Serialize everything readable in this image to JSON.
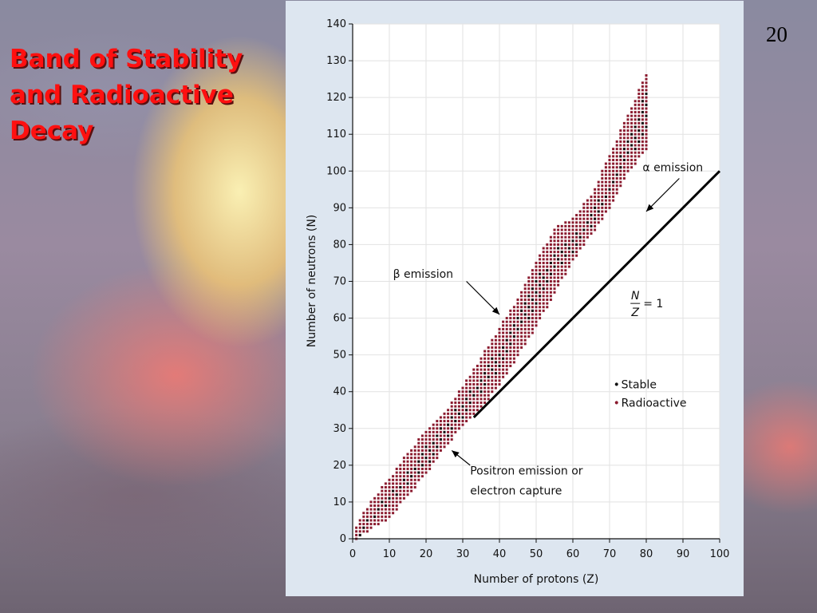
{
  "slide": {
    "title_lines": [
      "Band of Stability",
      "and Radioactive",
      "Decay"
    ],
    "number": "20"
  },
  "colors": {
    "title": "#ff1010",
    "stable": "#111111",
    "radioactive": "#8a1a2e",
    "panel": "#dde6f0"
  },
  "chart_data": {
    "type": "scatter",
    "xlabel": "Number of protons (Z)",
    "ylabel": "Number of neutrons (N)",
    "xlim": [
      0,
      100
    ],
    "ylim": [
      0,
      140
    ],
    "x_ticks": [
      0,
      10,
      20,
      30,
      40,
      50,
      60,
      70,
      80,
      90,
      100
    ],
    "y_ticks": [
      0,
      10,
      20,
      30,
      40,
      50,
      60,
      70,
      80,
      90,
      100,
      110,
      120,
      130,
      140
    ],
    "grid": true,
    "legend_position": "bottom-right",
    "legend": [
      {
        "label": "Stable",
        "marker": "•",
        "color": "#111111"
      },
      {
        "label": "Radioactive",
        "marker": "•",
        "color": "#8a1a2e"
      }
    ],
    "series": [
      {
        "name": "Radioactive",
        "color": "#8a1a2e",
        "band_upper": [
          [
            1,
            3
          ],
          [
            5,
            10
          ],
          [
            10,
            16
          ],
          [
            15,
            23
          ],
          [
            20,
            29
          ],
          [
            25,
            34
          ],
          [
            30,
            41
          ],
          [
            35,
            49
          ],
          [
            40,
            57
          ],
          [
            45,
            65
          ],
          [
            50,
            75
          ],
          [
            55,
            84
          ],
          [
            60,
            87
          ],
          [
            65,
            93
          ],
          [
            70,
            104
          ],
          [
            75,
            115
          ],
          [
            80,
            126
          ]
        ],
        "band_lower": [
          [
            1,
            0
          ],
          [
            5,
            3
          ],
          [
            10,
            6
          ],
          [
            15,
            12
          ],
          [
            20,
            18
          ],
          [
            25,
            25
          ],
          [
            30,
            31
          ],
          [
            35,
            36
          ],
          [
            40,
            42
          ],
          [
            45,
            50
          ],
          [
            50,
            58
          ],
          [
            55,
            67
          ],
          [
            60,
            76
          ],
          [
            65,
            83
          ],
          [
            70,
            90
          ],
          [
            75,
            100
          ],
          [
            80,
            106
          ]
        ]
      },
      {
        "name": "Stable",
        "color": "#111111",
        "band_upper": [
          [
            1,
            1
          ],
          [
            5,
            6
          ],
          [
            10,
            12
          ],
          [
            15,
            18
          ],
          [
            20,
            25
          ],
          [
            25,
            31
          ],
          [
            30,
            37
          ],
          [
            35,
            44
          ],
          [
            40,
            52
          ],
          [
            45,
            60
          ],
          [
            50,
            70
          ],
          [
            55,
            78
          ],
          [
            60,
            82
          ],
          [
            65,
            88
          ],
          [
            70,
            97
          ],
          [
            75,
            108
          ],
          [
            80,
            122
          ]
        ],
        "band_lower": [
          [
            1,
            0
          ],
          [
            5,
            5
          ],
          [
            10,
            10
          ],
          [
            15,
            15
          ],
          [
            20,
            20
          ],
          [
            25,
            27
          ],
          [
            30,
            33
          ],
          [
            35,
            40
          ],
          [
            40,
            46
          ],
          [
            45,
            55
          ],
          [
            50,
            64
          ],
          [
            55,
            73
          ],
          [
            60,
            78
          ],
          [
            65,
            85
          ],
          [
            70,
            94
          ],
          [
            75,
            104
          ],
          [
            80,
            110
          ]
        ]
      }
    ],
    "reference_line": {
      "from": [
        33,
        33
      ],
      "to": [
        100,
        100
      ]
    },
    "reference_line_label": {
      "numerator": "N",
      "denominator": "Z",
      "suffix": "= 1",
      "at": [
        77,
        64
      ]
    },
    "annotations": [
      {
        "text": "α emission",
        "text_at": [
          79,
          100
        ],
        "arrow_from": [
          89,
          98
        ],
        "arrow_to": [
          80,
          89
        ]
      },
      {
        "text": "β emission",
        "text_at": [
          11,
          71
        ],
        "arrow_from": [
          31,
          70
        ],
        "arrow_to": [
          40,
          61
        ]
      },
      {
        "text": "Positron emission or",
        "text_at": [
          32,
          17.5
        ],
        "arrow_from": [
          32,
          20
        ],
        "arrow_to": [
          27,
          24
        ]
      },
      {
        "text": "electron capture",
        "text_at": [
          32,
          12
        ],
        "arrow_from": null,
        "arrow_to": null
      }
    ]
  }
}
